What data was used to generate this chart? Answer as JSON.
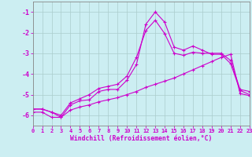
{
  "xlabel": "Windchill (Refroidissement éolien,°C)",
  "bg_color": "#cceef2",
  "grid_color": "#aacccc",
  "line_color": "#cc00cc",
  "xlim": [
    0,
    23
  ],
  "ylim": [
    -6.5,
    -0.5
  ],
  "yticks": [
    -6,
    -5,
    -4,
    -3,
    -2,
    -1
  ],
  "xticks": [
    0,
    1,
    2,
    3,
    4,
    5,
    6,
    7,
    8,
    9,
    10,
    11,
    12,
    13,
    14,
    15,
    16,
    17,
    18,
    19,
    20,
    21,
    22,
    23
  ],
  "line1_x": [
    0,
    1,
    2,
    3,
    4,
    5,
    6,
    7,
    8,
    9,
    10,
    11,
    12,
    13,
    14,
    15,
    16,
    17,
    18,
    19,
    20,
    21,
    22,
    23
  ],
  "line1_y": [
    -5.7,
    -5.7,
    -5.85,
    -6.1,
    -5.5,
    -5.3,
    -5.25,
    -4.85,
    -4.75,
    -4.75,
    -4.3,
    -3.55,
    -1.6,
    -1.0,
    -1.5,
    -2.7,
    -2.85,
    -2.65,
    -2.85,
    -3.05,
    -3.05,
    -3.5,
    -4.8,
    -5.0
  ],
  "line2_x": [
    0,
    1,
    2,
    3,
    4,
    5,
    6,
    7,
    8,
    9,
    10,
    11,
    12,
    13,
    14,
    15,
    16,
    17,
    18,
    19,
    20,
    21,
    22,
    23
  ],
  "line2_y": [
    -5.7,
    -5.7,
    -5.85,
    -6.0,
    -5.4,
    -5.2,
    -5.0,
    -4.7,
    -4.6,
    -4.5,
    -4.1,
    -3.2,
    -1.9,
    -1.4,
    -2.05,
    -3.0,
    -3.1,
    -2.95,
    -3.0,
    -3.0,
    -3.0,
    -3.35,
    -4.75,
    -4.85
  ],
  "line3_x": [
    0,
    1,
    2,
    3,
    4,
    5,
    6,
    7,
    8,
    9,
    10,
    11,
    12,
    13,
    14,
    15,
    16,
    17,
    18,
    19,
    20,
    21,
    22,
    23
  ],
  "line3_y": [
    -5.85,
    -5.85,
    -6.1,
    -6.1,
    -5.75,
    -5.6,
    -5.5,
    -5.35,
    -5.25,
    -5.15,
    -5.0,
    -4.85,
    -4.65,
    -4.5,
    -4.35,
    -4.2,
    -4.0,
    -3.8,
    -3.6,
    -3.4,
    -3.2,
    -3.05,
    -4.95,
    -5.05
  ]
}
